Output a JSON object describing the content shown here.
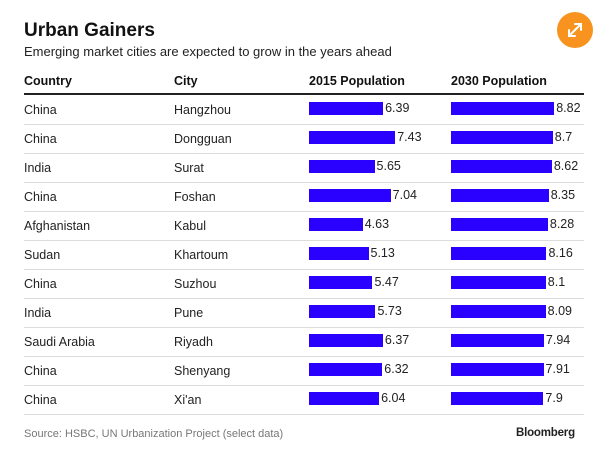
{
  "title": "Urban Gainers",
  "subtitle": "Emerging market cities are expected to grow in the years ahead",
  "headers": {
    "country": "Country",
    "city": "City",
    "pop2015": "2015 Population",
    "pop2030": "2030 Population"
  },
  "expand_icon": "expand-icon",
  "colors": {
    "bar": "#2a00ff",
    "accent": "#f7931e"
  },
  "source": "Source: HSBC, UN Urbanization Project (select data)",
  "brand": "Bloomberg",
  "chart_data": {
    "type": "table",
    "title": "Urban Gainers",
    "subtitle": "Emerging market cities are expected to grow in the years ahead",
    "columns": [
      "Country",
      "City",
      "2015 Population",
      "2030 Population"
    ],
    "rows": [
      {
        "country": "China",
        "city": "Hangzhou",
        "pop2015": "6.39",
        "pop2030": "8.82"
      },
      {
        "country": "China",
        "city": "Dongguan",
        "pop2015": "7.43",
        "pop2030": "8.7"
      },
      {
        "country": "India",
        "city": "Surat",
        "pop2015": "5.65",
        "pop2030": "8.62"
      },
      {
        "country": "China",
        "city": "Foshan",
        "pop2015": "7.04",
        "pop2030": "8.35"
      },
      {
        "country": "Afghanistan",
        "city": "Kabul",
        "pop2015": "4.63",
        "pop2030": "8.28"
      },
      {
        "country": "Sudan",
        "city": "Khartoum",
        "pop2015": "5.13",
        "pop2030": "8.16"
      },
      {
        "country": "China",
        "city": "Suzhou",
        "pop2015": "5.47",
        "pop2030": "8.1"
      },
      {
        "country": "India",
        "city": "Pune",
        "pop2015": "5.73",
        "pop2030": "8.09"
      },
      {
        "country": "Saudi Arabia",
        "city": "Riyadh",
        "pop2015": "6.37",
        "pop2030": "7.94"
      },
      {
        "country": "China",
        "city": "Shenyang",
        "pop2015": "6.32",
        "pop2030": "7.91"
      },
      {
        "country": "China",
        "city": "Xi'an",
        "pop2015": "6.04",
        "pop2030": "7.9"
      }
    ]
  }
}
